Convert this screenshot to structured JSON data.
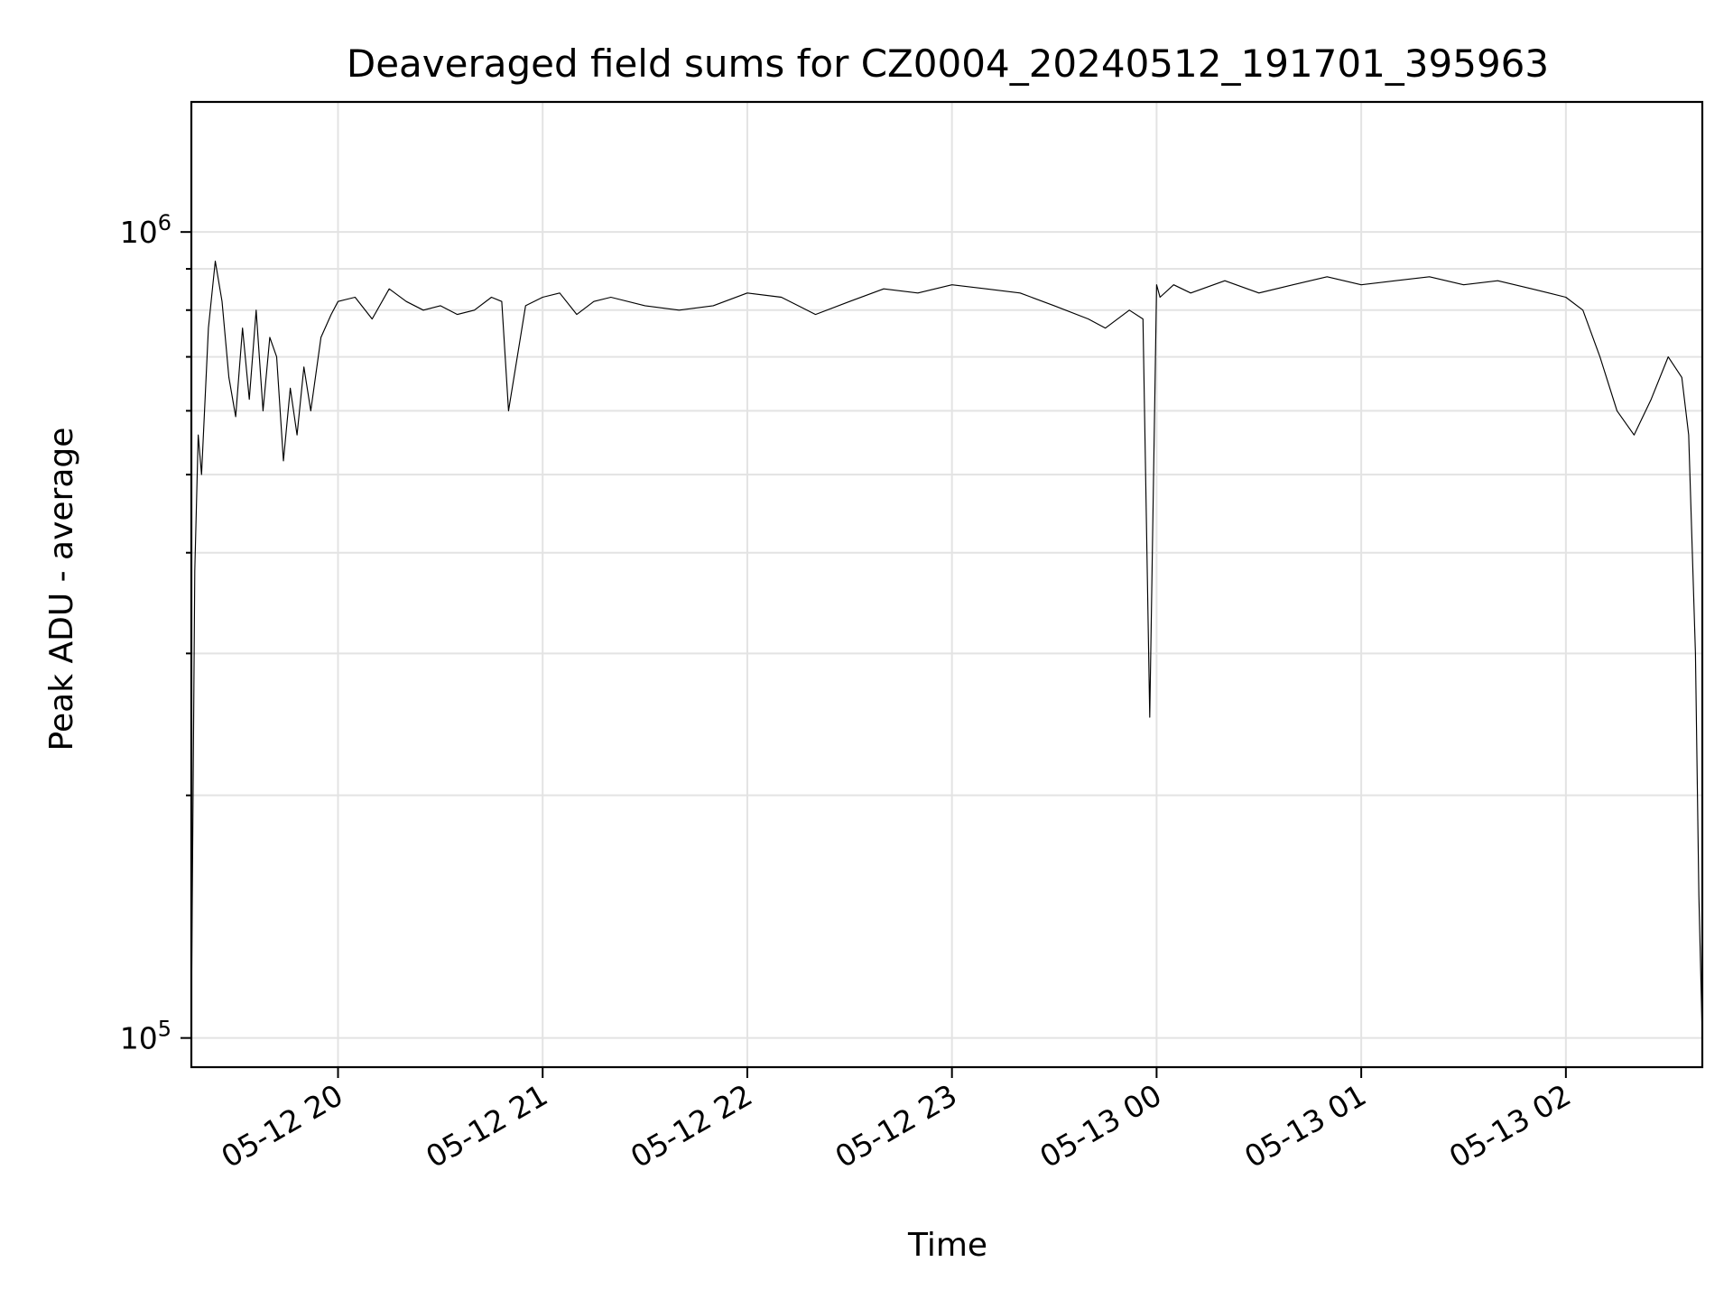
{
  "chart_data": {
    "type": "line",
    "title": "Deaveraged field sums for CZ0004_20240512_191701_395963",
    "xlabel": "Time",
    "ylabel": "Peak ADU - average",
    "yscale": "log",
    "ylim": [
      92000,
      1450000
    ],
    "xlim": [
      "2024-05-12 19:17",
      "2024-05-13 02:40"
    ],
    "grid": true,
    "line_color": "#000000",
    "x_ticks": [
      {
        "value": "2024-05-12 20:00",
        "label": "05-12 20"
      },
      {
        "value": "2024-05-12 21:00",
        "label": "05-12 21"
      },
      {
        "value": "2024-05-12 22:00",
        "label": "05-12 22"
      },
      {
        "value": "2024-05-12 23:00",
        "label": "05-12 23"
      },
      {
        "value": "2024-05-13 00:00",
        "label": "05-13 00"
      },
      {
        "value": "2024-05-13 01:00",
        "label": "05-13 01"
      },
      {
        "value": "2024-05-13 02:00",
        "label": "05-13 02"
      }
    ],
    "y_ticks": [
      {
        "value": 100000,
        "base": "10",
        "exp": "5"
      },
      {
        "value": 1000000,
        "base": "10",
        "exp": "6"
      }
    ],
    "y_minor_ticks": [
      200000,
      300000,
      400000,
      500000,
      600000,
      700000,
      800000,
      900000
    ],
    "series": [
      {
        "x": [
          "2024-05-12 19:17",
          "2024-05-12 19:18",
          "2024-05-12 19:19",
          "2024-05-12 19:20",
          "2024-05-12 19:22",
          "2024-05-12 19:24",
          "2024-05-12 19:26",
          "2024-05-12 19:28",
          "2024-05-12 19:30",
          "2024-05-12 19:32",
          "2024-05-12 19:34",
          "2024-05-12 19:36",
          "2024-05-12 19:38",
          "2024-05-12 19:40",
          "2024-05-12 19:42",
          "2024-05-12 19:44",
          "2024-05-12 19:46",
          "2024-05-12 19:48",
          "2024-05-12 19:50",
          "2024-05-12 19:52",
          "2024-05-12 19:55",
          "2024-05-12 19:58",
          "2024-05-12 20:00",
          "2024-05-12 20:05",
          "2024-05-12 20:10",
          "2024-05-12 20:15",
          "2024-05-12 20:20",
          "2024-05-12 20:25",
          "2024-05-12 20:30",
          "2024-05-12 20:35",
          "2024-05-12 20:40",
          "2024-05-12 20:45",
          "2024-05-12 20:48",
          "2024-05-12 20:50",
          "2024-05-12 20:55",
          "2024-05-12 21:00",
          "2024-05-12 21:05",
          "2024-05-12 21:10",
          "2024-05-12 21:15",
          "2024-05-12 21:20",
          "2024-05-12 21:30",
          "2024-05-12 21:40",
          "2024-05-12 21:50",
          "2024-05-12 22:00",
          "2024-05-12 22:10",
          "2024-05-12 22:20",
          "2024-05-12 22:30",
          "2024-05-12 22:40",
          "2024-05-12 22:50",
          "2024-05-12 23:00",
          "2024-05-12 23:10",
          "2024-05-12 23:20",
          "2024-05-12 23:30",
          "2024-05-12 23:40",
          "2024-05-12 23:45",
          "2024-05-12 23:52",
          "2024-05-12 23:56",
          "2024-05-12 23:58",
          "2024-05-13 00:00",
          "2024-05-13 00:01",
          "2024-05-13 00:05",
          "2024-05-13 00:10",
          "2024-05-13 00:20",
          "2024-05-13 00:30",
          "2024-05-13 00:40",
          "2024-05-13 00:50",
          "2024-05-13 01:00",
          "2024-05-13 01:10",
          "2024-05-13 01:20",
          "2024-05-13 01:30",
          "2024-05-13 01:40",
          "2024-05-13 01:50",
          "2024-05-13 01:55",
          "2024-05-13 02:00",
          "2024-05-13 02:05",
          "2024-05-13 02:10",
          "2024-05-13 02:15",
          "2024-05-13 02:20",
          "2024-05-13 02:25",
          "2024-05-13 02:30",
          "2024-05-13 02:34",
          "2024-05-13 02:36",
          "2024-05-13 02:38",
          "2024-05-13 02:39",
          "2024-05-13 02:40"
        ],
        "values": [
          105000,
          380000,
          560000,
          500000,
          760000,
          920000,
          820000,
          660000,
          590000,
          760000,
          620000,
          800000,
          600000,
          740000,
          700000,
          520000,
          640000,
          560000,
          680000,
          600000,
          740000,
          790000,
          820000,
          830000,
          780000,
          850000,
          820000,
          800000,
          810000,
          790000,
          800000,
          830000,
          820000,
          600000,
          810000,
          830000,
          840000,
          790000,
          820000,
          830000,
          810000,
          800000,
          810000,
          840000,
          830000,
          790000,
          820000,
          850000,
          840000,
          860000,
          850000,
          840000,
          810000,
          780000,
          760000,
          800000,
          780000,
          250000,
          860000,
          830000,
          860000,
          840000,
          870000,
          840000,
          860000,
          880000,
          860000,
          870000,
          880000,
          860000,
          870000,
          850000,
          840000,
          830000,
          800000,
          700000,
          600000,
          560000,
          620000,
          700000,
          660000,
          560000,
          300000,
          150000,
          100000
        ]
      }
    ]
  }
}
